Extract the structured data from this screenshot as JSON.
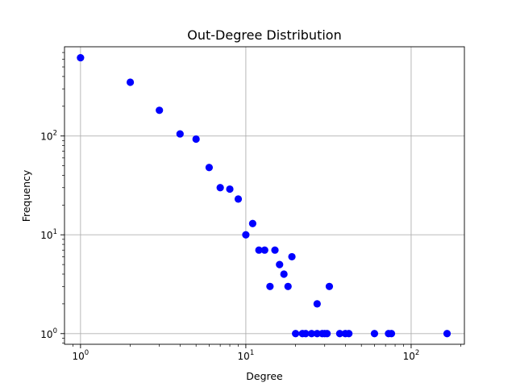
{
  "chart_data": {
    "type": "scatter",
    "title": "Out-Degree Distribution",
    "xlabel": "Degree",
    "ylabel": "Frequency",
    "xscale": "log",
    "yscale": "log",
    "xlim": [
      0.8,
      210
    ],
    "ylim": [
      0.78,
      800
    ],
    "grid": true,
    "marker_color": "#0000ff",
    "x_ticks": [
      {
        "base": "10",
        "exp": "0",
        "value": 1
      },
      {
        "base": "10",
        "exp": "1",
        "value": 10
      },
      {
        "base": "10",
        "exp": "2",
        "value": 100
      }
    ],
    "y_ticks": [
      {
        "base": "10",
        "exp": "0",
        "value": 1
      },
      {
        "base": "10",
        "exp": "1",
        "value": 10
      },
      {
        "base": "10",
        "exp": "2",
        "value": 100
      }
    ],
    "points": [
      {
        "x": 1,
        "y": 620
      },
      {
        "x": 2,
        "y": 350
      },
      {
        "x": 3,
        "y": 182
      },
      {
        "x": 4,
        "y": 105
      },
      {
        "x": 5,
        "y": 93
      },
      {
        "x": 6,
        "y": 48
      },
      {
        "x": 7,
        "y": 30
      },
      {
        "x": 8,
        "y": 29
      },
      {
        "x": 9,
        "y": 23
      },
      {
        "x": 10,
        "y": 10
      },
      {
        "x": 11,
        "y": 13
      },
      {
        "x": 12,
        "y": 7
      },
      {
        "x": 13,
        "y": 7
      },
      {
        "x": 14,
        "y": 3
      },
      {
        "x": 15,
        "y": 7
      },
      {
        "x": 16,
        "y": 5
      },
      {
        "x": 17,
        "y": 4
      },
      {
        "x": 18,
        "y": 3
      },
      {
        "x": 19,
        "y": 6
      },
      {
        "x": 20,
        "y": 1
      },
      {
        "x": 22,
        "y": 1
      },
      {
        "x": 23,
        "y": 1
      },
      {
        "x": 25,
        "y": 1
      },
      {
        "x": 27,
        "y": 1
      },
      {
        "x": 27,
        "y": 2
      },
      {
        "x": 29,
        "y": 1
      },
      {
        "x": 30,
        "y": 1
      },
      {
        "x": 31,
        "y": 1
      },
      {
        "x": 32,
        "y": 3
      },
      {
        "x": 37,
        "y": 1
      },
      {
        "x": 40,
        "y": 1
      },
      {
        "x": 42,
        "y": 1
      },
      {
        "x": 60,
        "y": 1
      },
      {
        "x": 73,
        "y": 1
      },
      {
        "x": 76,
        "y": 1
      },
      {
        "x": 165,
        "y": 1
      }
    ]
  }
}
